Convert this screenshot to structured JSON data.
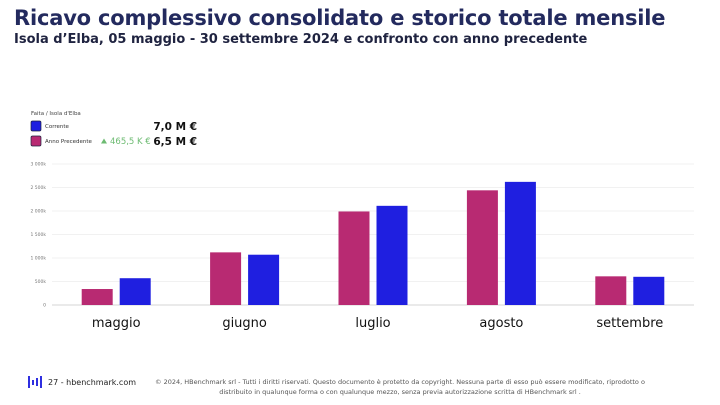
{
  "title": "Ricavo complessivo consolidato e storico totale mensile",
  "subtitle": "Isola d’Elba,  05 maggio - 30 settembre 2024 e confronto con anno precedente",
  "colors": {
    "current": "#1f1fe0",
    "previous": "#b82a72",
    "delta": "#6dbb72",
    "title": "#232a5e"
  },
  "chart_data": {
    "type": "bar",
    "legend": {
      "title": "Faita / Isola d'Elba",
      "placement": "top-left",
      "delta_icon": "triangle-up-icon",
      "entries": [
        {
          "label": "Corrente",
          "total": "7,0 M €",
          "delta": ""
        },
        {
          "label": "Anno Precedente",
          "total": "6,5 M €",
          "delta": "465,5 K €"
        }
      ]
    },
    "categories": [
      "maggio",
      "giugno",
      "luglio",
      "agosto",
      "settembre"
    ],
    "series": [
      {
        "name": "Anno Precedente",
        "values": [
          340000,
          1120000,
          1990000,
          2440000,
          610000
        ]
      },
      {
        "name": "Corrente",
        "values": [
          570000,
          1070000,
          2110000,
          2620000,
          600000
        ]
      }
    ],
    "yticks": [
      0,
      500000,
      1000000,
      1500000,
      2000000,
      2500000,
      3000000
    ],
    "ytick_labels": [
      "0",
      "500k",
      "1 000k",
      "1 500k",
      "2 000k",
      "2 500k",
      "3 000k"
    ],
    "ylim": [
      0,
      3000000
    ],
    "grid": true,
    "xlabel": "",
    "ylabel": ""
  },
  "footer": {
    "logo_icon": "hbenchmark-logo-icon",
    "page_label": "27 - hbenchmark.com",
    "copyright": "© 2024, HBenchmark srl - Tutti i diritti riservati. Questo documento è protetto da copyright. Nessuna parte di esso può essere modificato, riprodotto o distribuito in qualunque forma o con qualunque mezzo, senza previa autorizzazione scritta di HBenchmark srl ."
  }
}
